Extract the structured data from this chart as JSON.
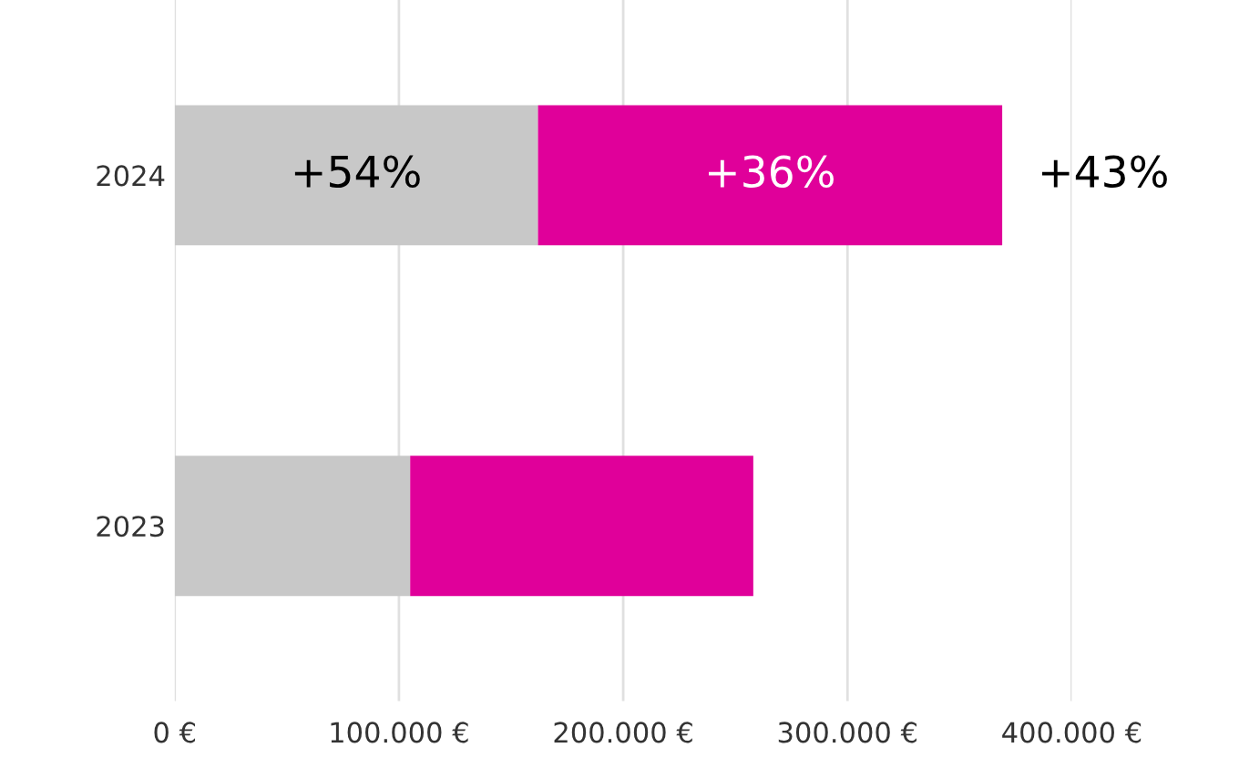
{
  "chart_data": {
    "type": "bar",
    "orientation": "horizontal",
    "stacked": true,
    "categories": [
      "2024",
      "2023"
    ],
    "series": [
      {
        "color": "#c8c8c8",
        "values": [
          162000,
          105000
        ]
      },
      {
        "color": "#e0009a",
        "values": [
          207000,
          153000
        ]
      }
    ],
    "annotations": [
      "+54%",
      "+36%",
      "+43%"
    ],
    "xlim": [
      0,
      400000
    ],
    "xticks": [
      {
        "value": 0,
        "label": "0 €"
      },
      {
        "value": 100000,
        "label": "100.000 €"
      },
      {
        "value": 200000,
        "label": "200.000 €"
      },
      {
        "value": 300000,
        "label": "300.000 €"
      },
      {
        "value": 400000,
        "label": "400.000 €"
      }
    ],
    "grid": "x",
    "legend": false
  }
}
